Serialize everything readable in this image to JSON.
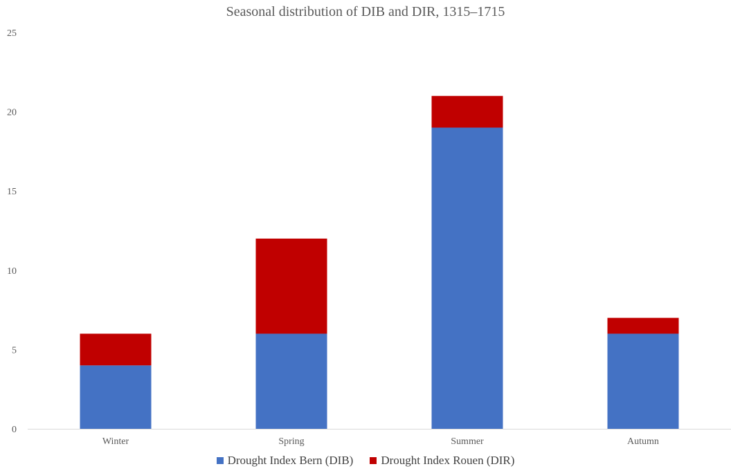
{
  "chart_data": {
    "type": "bar",
    "stacked": true,
    "title": "Seasonal distribution of DIB and DIR, 1315–1715",
    "xlabel": "",
    "ylabel": "",
    "categories": [
      "Winter",
      "Spring",
      "Summer",
      "Autumn"
    ],
    "series": [
      {
        "name": "Drought Index Bern (DIB)",
        "values": [
          4,
          6,
          19,
          6
        ],
        "color": "#4472C4"
      },
      {
        "name": "Drought Index Rouen (DIR)",
        "values": [
          2,
          6,
          2,
          1
        ],
        "color": "#C00000"
      }
    ],
    "ylim": [
      0,
      25
    ],
    "yticks": [
      "0",
      "5",
      "10",
      "15",
      "20",
      "25"
    ],
    "grid": false,
    "legend_position": "bottom"
  }
}
